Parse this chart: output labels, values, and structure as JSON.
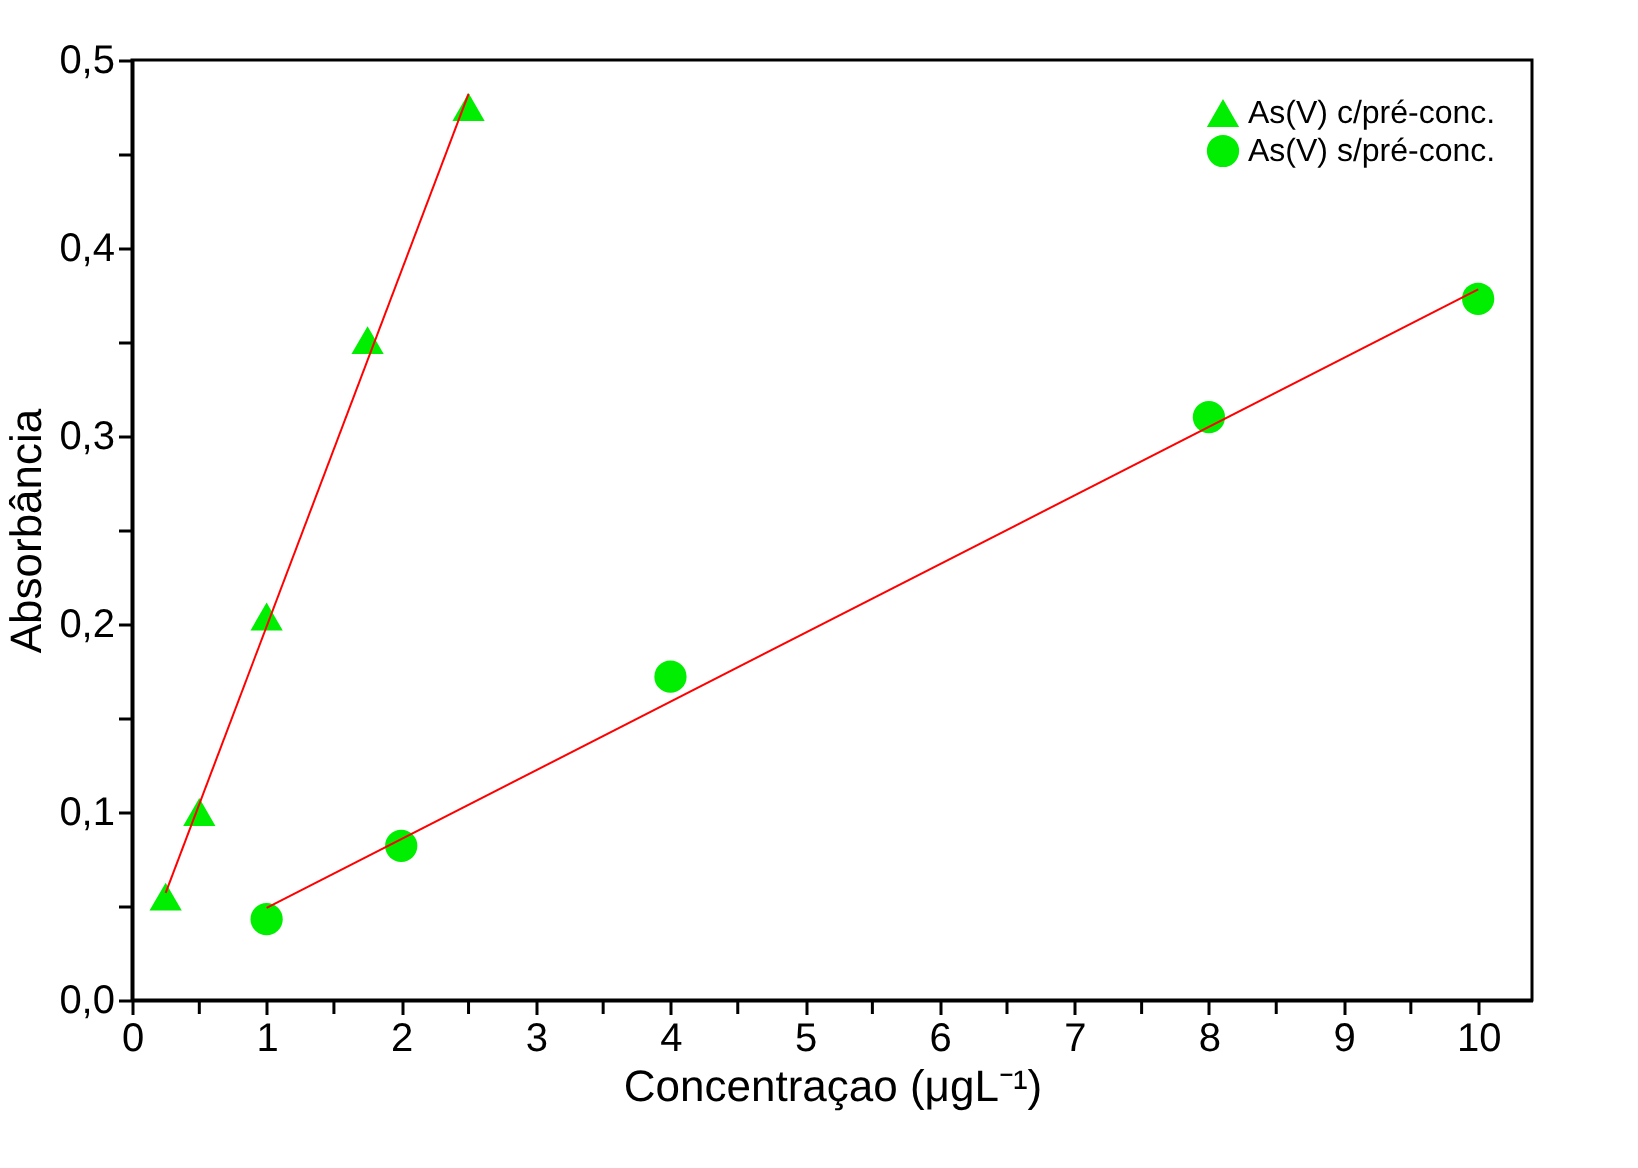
{
  "chart_data": {
    "type": "scatter",
    "xlabel": "Concentraçao (μgL⁻¹)",
    "ylabel": "Absorbância",
    "xlim": [
      0,
      10.4
    ],
    "ylim": [
      0,
      0.5
    ],
    "xticks": [
      0,
      {
        "value": 0.5,
        "label": null
      },
      1,
      {
        "value": 1.5,
        "label": null
      },
      2,
      {
        "value": 2.5,
        "label": null
      },
      3,
      {
        "value": 3.5,
        "label": null
      },
      4,
      {
        "value": 4.5,
        "label": null
      },
      5,
      {
        "value": 5.5,
        "label": null
      },
      6,
      {
        "value": 6.5,
        "label": null
      },
      7,
      {
        "value": 7.5,
        "label": null
      },
      8,
      {
        "value": 8.5,
        "label": null
      },
      9,
      {
        "value": 9.5,
        "label": null
      },
      10
    ],
    "yticks": [
      {
        "value": 0,
        "label": "0,0"
      },
      {
        "value": 0.05,
        "label": null
      },
      {
        "value": 0.1,
        "label": "0,1"
      },
      {
        "value": 0.15,
        "label": null
      },
      {
        "value": 0.2,
        "label": "0,2"
      },
      {
        "value": 0.25,
        "label": null
      },
      {
        "value": 0.3,
        "label": "0,3"
      },
      {
        "value": 0.35,
        "label": null
      },
      {
        "value": 0.4,
        "label": "0,4"
      },
      {
        "value": 0.45,
        "label": null
      },
      {
        "value": 0.5,
        "label": "0,5"
      }
    ],
    "grid": false,
    "legend": "top right",
    "series": [
      {
        "name": "As(V) c/pré-conc.",
        "marker": "triangle",
        "color": "#00ee00",
        "x": [
          0.25,
          0.5,
          1,
          1.75,
          2.5
        ],
        "values": [
          0.055,
          0.1,
          0.204,
          0.351,
          0.475
        ]
      },
      {
        "name": "As(V) s/pré-conc.",
        "marker": "circle",
        "color": "#00ee00",
        "x": [
          1,
          2,
          4,
          8,
          10
        ],
        "values": [
          0.043,
          0.082,
          0.172,
          0.31,
          0.373
        ]
      },
      {
        "type": "line",
        "color": "#ff0000",
        "line_style": "solid",
        "x": [
          0.25,
          2.5
        ],
        "values": [
          0.057,
          0.482
        ]
      },
      {
        "type": "line",
        "color": "#ff0000",
        "line_style": "solid",
        "x": [
          1,
          10
        ],
        "values": [
          0.049,
          0.378
        ]
      }
    ]
  }
}
